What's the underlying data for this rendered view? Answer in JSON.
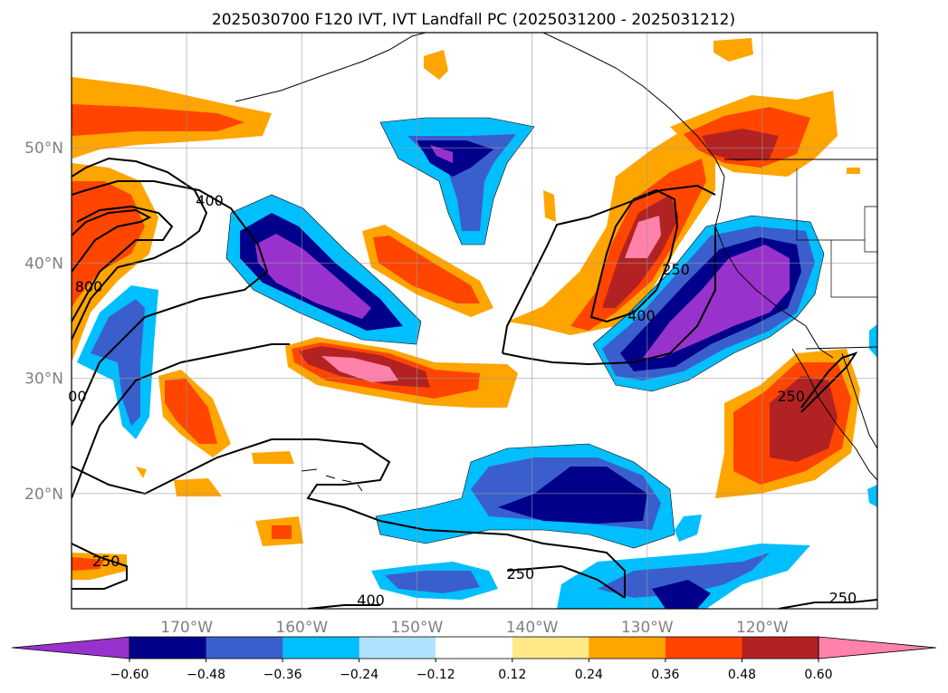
{
  "title": "2025030700 F120 IVT, IVT Landfall PC (2025031200 - 2025031212)",
  "map": {
    "lon_range": [
      -180,
      -110
    ],
    "lat_range": [
      10,
      60
    ],
    "lon_ticks": [
      {
        "lon": -170,
        "label": "170°W"
      },
      {
        "lon": -160,
        "label": "160°W"
      },
      {
        "lon": -150,
        "label": "150°W"
      },
      {
        "lon": -140,
        "label": "140°W"
      },
      {
        "lon": -130,
        "label": "130°W"
      },
      {
        "lon": -120,
        "label": "120°W"
      }
    ],
    "lat_ticks": [
      {
        "lat": 20,
        "label": "20°N"
      },
      {
        "lat": 30,
        "label": "30°N"
      },
      {
        "lat": 40,
        "label": "40°N"
      },
      {
        "lat": 50,
        "label": "50°N"
      }
    ],
    "grid": true
  },
  "colorbar": {
    "colors": [
      "#9932cc",
      "#00008b",
      "#3a5fcd",
      "#00bfff",
      "#b0e2ff",
      "#ffffff",
      "#ffe987",
      "#ffa500",
      "#ff4500",
      "#b22222",
      "#ff82ab"
    ],
    "tick_labels": [
      "−0.60",
      "−0.48",
      "−0.36",
      "−0.24",
      "−0.12",
      "0.12",
      "0.24",
      "0.36",
      "0.48",
      "0.60"
    ],
    "extend": "both"
  },
  "contour_labels": [
    {
      "text": "400",
      "lon": -168,
      "lat": 45
    },
    {
      "text": "800",
      "lon": -178.5,
      "lat": 37.5
    },
    {
      "text": "00",
      "lon": -179.5,
      "lat": 28
    },
    {
      "text": "400",
      "lon": -130.5,
      "lat": 35
    },
    {
      "text": "250",
      "lon": -127.5,
      "lat": 39
    },
    {
      "text": "250",
      "lon": -117.5,
      "lat": 28
    },
    {
      "text": "250",
      "lon": -141,
      "lat": 12.6
    },
    {
      "text": "400",
      "lon": -154,
      "lat": 10.3
    },
    {
      "text": "250",
      "lon": -113,
      "lat": 10.5
    },
    {
      "text": "250",
      "lon": -177,
      "lat": 13.7
    }
  ]
}
